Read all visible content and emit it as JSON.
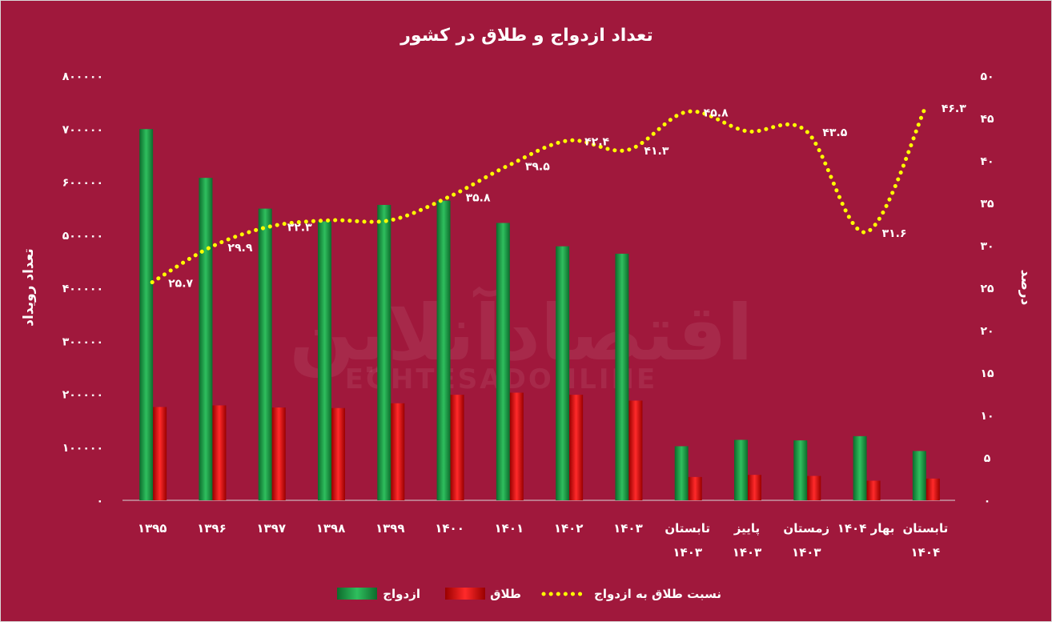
{
  "chart_data": {
    "type": "bar",
    "title": "تعداد ازدواج و طلاق در کشور",
    "ylabel": "تعداد رویداد",
    "y2label": "درصد",
    "categories": [
      [
        "۱۳۹۵"
      ],
      [
        "۱۳۹۶"
      ],
      [
        "۱۳۹۷"
      ],
      [
        "۱۳۹۸"
      ],
      [
        "۱۳۹۹"
      ],
      [
        "۱۴۰۰"
      ],
      [
        "۱۴۰۱"
      ],
      [
        "۱۴۰۲"
      ],
      [
        "۱۴۰۳"
      ],
      [
        "تابستان",
        "۱۴۰۳"
      ],
      [
        "پاییز",
        "۱۴۰۳"
      ],
      [
        "زمستان",
        "۱۴۰۳"
      ],
      [
        "بهار ۱۴۰۴"
      ],
      [
        "تابستان",
        "۱۴۰۴"
      ]
    ],
    "series": [
      {
        "name": "ازدواج",
        "axis": "left",
        "color": "#1e9a48",
        "values": [
          700000,
          608000,
          550000,
          526000,
          557000,
          565000,
          523000,
          479000,
          465000,
          102000,
          114000,
          113000,
          121000,
          93000
        ]
      },
      {
        "name": "طلاق",
        "axis": "left",
        "color": "#e00000",
        "values": [
          176000,
          179000,
          175000,
          174000,
          183000,
          199000,
          203000,
          199000,
          188000,
          44000,
          48000,
          46000,
          37000,
          41000
        ]
      },
      {
        "name": "نسبت طلاق به ازدواج",
        "axis": "right",
        "type": "line",
        "style": "dotted",
        "color": "#ffff00",
        "values": [
          25.7,
          29.9,
          32.3,
          33,
          33,
          35.8,
          39.5,
          42.4,
          41.3,
          45.8,
          43.5,
          43.5,
          31.6,
          46.3
        ],
        "labels": [
          "۲۵.۷",
          "۲۹.۹",
          "۳۲.۳",
          "",
          "",
          "۳۵.۸",
          "۳۹.۵",
          "۴۲.۴",
          "۴۱.۳",
          "۴۵.۸",
          "",
          "۴۳.۵",
          "۳۱.۶",
          "۴۶.۳"
        ]
      }
    ],
    "ylim": [
      0,
      800000
    ],
    "y2lim": [
      0,
      50
    ],
    "yticks": [
      "۰",
      "۱۰۰۰۰۰",
      "۲۰۰۰۰۰",
      "۳۰۰۰۰۰",
      "۴۰۰۰۰۰",
      "۵۰۰۰۰۰",
      "۶۰۰۰۰۰",
      "۷۰۰۰۰۰",
      "۸۰۰۰۰۰"
    ],
    "y2ticks": [
      "۰",
      "۵",
      "۱۰",
      "۱۵",
      "۲۰",
      "۲۵",
      "۳۰",
      "۳۵",
      "۴۰",
      "۴۵",
      "۵۰"
    ],
    "legend_position": "bottom",
    "grid": false
  },
  "watermark": {
    "logo_text": "اقتصادآنلاین",
    "latin_text": "EGHTESADONLINE"
  }
}
